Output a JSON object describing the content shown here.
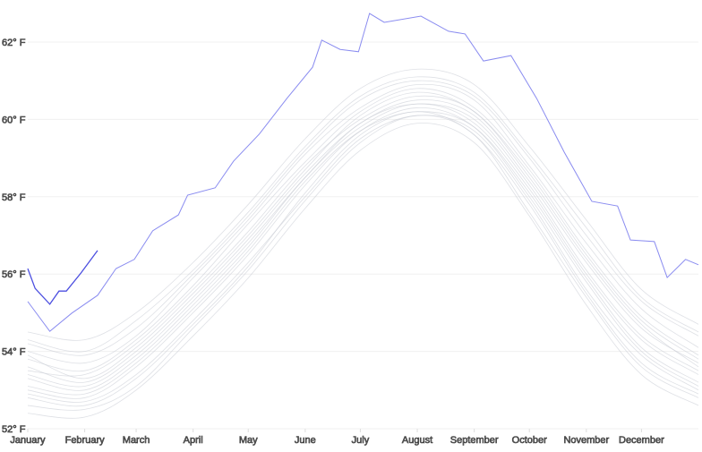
{
  "chart_data": {
    "type": "line",
    "title": "",
    "xlabel": "",
    "ylabel": "",
    "ylim": [
      52,
      62
    ],
    "xlim": [
      0,
      365
    ],
    "grid": true,
    "y_ticks": [
      {
        "value": 62,
        "label": "62° F"
      },
      {
        "value": 60,
        "label": "60° F"
      },
      {
        "value": 58,
        "label": "58° F"
      },
      {
        "value": 56,
        "label": "56° F"
      },
      {
        "value": 54,
        "label": "54° F"
      },
      {
        "value": 52,
        "label": "52° F"
      }
    ],
    "x_ticks": [
      {
        "value": 0,
        "label": "January"
      },
      {
        "value": 31,
        "label": "February"
      },
      {
        "value": 59,
        "label": "March"
      },
      {
        "value": 90,
        "label": "April"
      },
      {
        "value": 120,
        "label": "May"
      },
      {
        "value": 151,
        "label": "June"
      },
      {
        "value": 181,
        "label": "July"
      },
      {
        "value": 212,
        "label": "August"
      },
      {
        "value": 243,
        "label": "September"
      },
      {
        "value": 273,
        "label": "October"
      },
      {
        "value": 304,
        "label": "November"
      },
      {
        "value": 334,
        "label": "December"
      }
    ],
    "colors": {
      "past_years": "#c8ccd4",
      "highlight_year": "#8a8cf0",
      "current_year": "#4c4fe0"
    },
    "past_years_x": [
      0,
      31,
      59,
      90,
      120,
      151,
      181,
      212,
      243,
      273,
      304,
      334,
      365
    ],
    "past_years": [
      [
        53.6,
        53.2,
        54.0,
        55.4,
        56.9,
        58.6,
        59.9,
        60.5,
        60.1,
        58.4,
        56.3,
        54.6,
        53.7
      ],
      [
        53.0,
        52.8,
        53.6,
        55.0,
        56.5,
        58.3,
        59.7,
        60.3,
        59.8,
        58.0,
        55.8,
        54.0,
        53.1
      ],
      [
        54.2,
        53.9,
        54.6,
        56.0,
        57.5,
        59.2,
        60.5,
        61.0,
        60.6,
        59.0,
        57.0,
        55.3,
        54.4
      ],
      [
        52.6,
        52.5,
        53.1,
        54.6,
        56.1,
        57.9,
        59.4,
        60.1,
        59.6,
        57.6,
        55.4,
        53.6,
        52.8
      ],
      [
        53.8,
        53.5,
        54.3,
        55.7,
        57.3,
        58.9,
        60.2,
        60.8,
        60.3,
        58.7,
        56.6,
        54.9,
        53.9
      ],
      [
        53.3,
        53.0,
        53.8,
        55.2,
        56.7,
        58.5,
        59.8,
        60.4,
        59.9,
        58.2,
        56.0,
        54.3,
        53.4
      ],
      [
        54.5,
        54.3,
        55.0,
        56.3,
        57.8,
        59.5,
        60.8,
        61.3,
        60.9,
        59.3,
        57.4,
        55.6,
        54.7
      ],
      [
        52.9,
        52.7,
        53.4,
        54.8,
        56.3,
        58.0,
        59.5,
        60.1,
        59.7,
        57.9,
        55.6,
        53.9,
        53.0
      ],
      [
        53.5,
        53.4,
        54.2,
        55.6,
        57.1,
        58.8,
        60.0,
        60.6,
        60.2,
        58.5,
        56.4,
        54.7,
        53.6
      ],
      [
        52.4,
        52.3,
        53.0,
        54.4,
        55.9,
        57.7,
        59.2,
        59.9,
        59.4,
        57.5,
        55.2,
        53.4,
        52.6
      ],
      [
        54.0,
        53.7,
        54.4,
        55.9,
        57.4,
        59.1,
        60.3,
        60.9,
        60.5,
        58.8,
        56.8,
        55.1,
        54.1
      ],
      [
        53.1,
        52.9,
        53.7,
        55.1,
        56.6,
        58.4,
        59.7,
        60.2,
        59.8,
        58.1,
        55.9,
        54.1,
        53.2
      ],
      [
        53.9,
        53.3,
        54.1,
        55.5,
        57.0,
        58.7,
        60.1,
        60.7,
        60.2,
        58.6,
        56.5,
        54.8,
        53.8
      ],
      [
        52.8,
        52.6,
        53.3,
        54.7,
        56.2,
        58.1,
        59.6,
        60.2,
        59.6,
        57.8,
        55.5,
        53.7,
        52.9
      ],
      [
        54.3,
        54.0,
        54.8,
        56.1,
        57.6,
        59.3,
        60.6,
        61.1,
        60.7,
        59.1,
        57.2,
        55.4,
        54.5
      ],
      [
        53.4,
        53.1,
        53.9,
        55.3,
        56.8,
        58.5,
        59.9,
        60.4,
        60.0,
        58.3,
        56.1,
        54.4,
        53.5
      ]
    ],
    "series": [
      {
        "role": "highlight_year",
        "x": [
          0,
          12,
          24,
          38,
          48,
          58,
          68,
          82,
          87,
          102,
          112,
          126,
          141,
          155,
          160,
          170,
          180,
          186,
          194,
          214,
          229,
          238,
          248,
          263,
          277,
          292,
          307,
          321,
          328,
          341,
          348,
          358,
          365
        ],
        "y": [
          55.29,
          54.52,
          54.99,
          55.45,
          56.14,
          56.38,
          57.12,
          57.53,
          58.04,
          58.23,
          58.92,
          59.62,
          60.54,
          61.35,
          62.05,
          61.81,
          61.75,
          62.74,
          62.51,
          62.67,
          62.28,
          62.21,
          61.51,
          61.65,
          60.54,
          59.15,
          57.88,
          57.76,
          56.88,
          56.84,
          55.91,
          56.38,
          56.24
        ]
      },
      {
        "role": "current_year",
        "x": [
          0,
          4,
          12,
          17,
          21,
          29,
          38
        ],
        "y": [
          56.14,
          55.63,
          55.22,
          55.56,
          55.56,
          56.03,
          56.61
        ]
      }
    ]
  }
}
